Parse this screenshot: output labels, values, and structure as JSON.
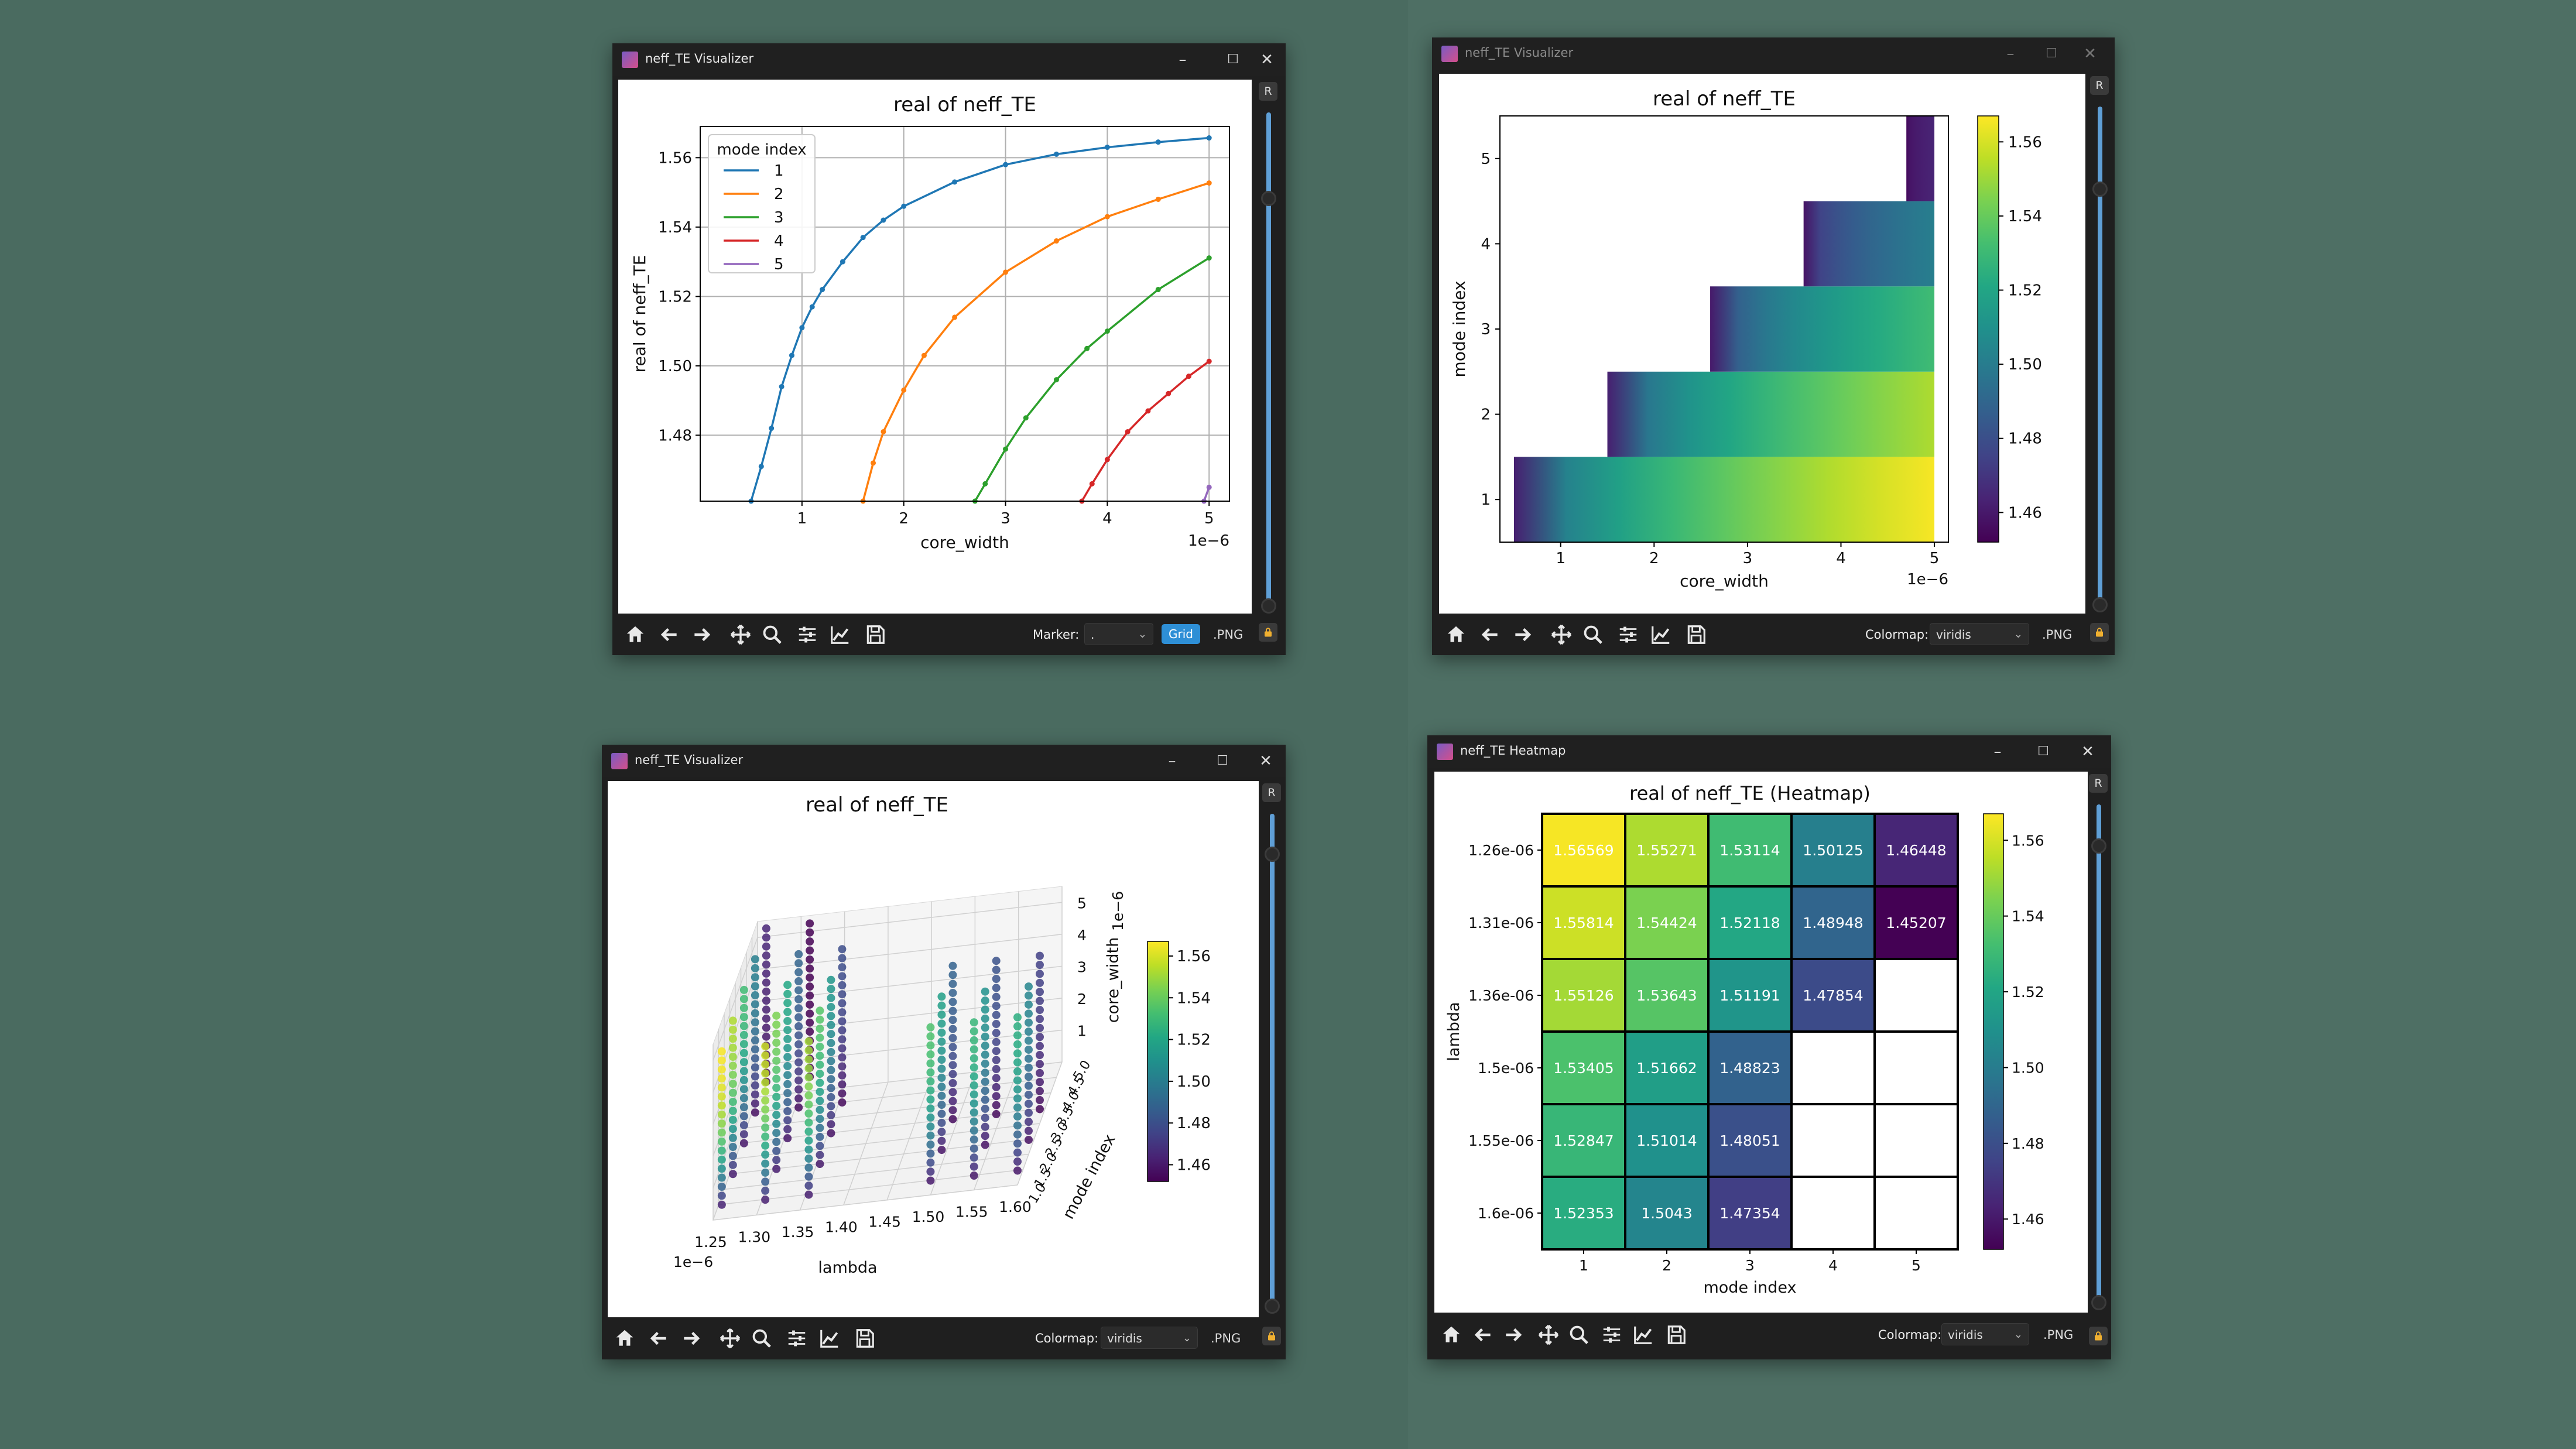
{
  "windows": [
    {
      "id": "line",
      "title": "neff_TE Visualizer",
      "toolbar": {
        "marker_label": "Marker:",
        "marker_value": ".",
        "grid_label": "Grid",
        "png_label": ".PNG"
      }
    },
    {
      "id": "heat2d",
      "title": "neff_TE Visualizer",
      "toolbar": {
        "colormap_label": "Colormap:",
        "colormap_value": "viridis",
        "png_label": ".PNG"
      }
    },
    {
      "id": "scatter3d",
      "title": "neff_TE Visualizer",
      "toolbar": {
        "colormap_label": "Colormap:",
        "colormap_value": "viridis",
        "png_label": ".PNG"
      }
    },
    {
      "id": "heatmap",
      "title": "neff_TE Heatmap",
      "toolbar": {
        "colormap_label": "Colormap:",
        "colormap_value": "viridis",
        "png_label": ".PNG"
      }
    }
  ],
  "side": {
    "reset_label": "R"
  },
  "colors": {
    "window_bg": "#1f1f1f",
    "accent": "#2e8fd6",
    "desktop": "#4a6b60"
  },
  "chart_data": [
    {
      "type": "line",
      "title": "real of neff_TE",
      "xlabel": "core_width",
      "ylabel": "real of neff_TE",
      "x_offset_label": "1e−6",
      "xlim": [
        0.0,
        5.2
      ],
      "ylim": [
        1.461,
        1.569
      ],
      "xticks": [
        1,
        2,
        3,
        4,
        5
      ],
      "yticks": [
        "1.48",
        "1.50",
        "1.52",
        "1.54",
        "1.56"
      ],
      "grid": true,
      "legend": {
        "title": "mode index",
        "position": "upper left",
        "labels": [
          "1",
          "2",
          "3",
          "4",
          "5"
        ]
      },
      "series": [
        {
          "name": "1",
          "color": "#1f77b4",
          "x": [
            0.5,
            0.6,
            0.7,
            0.8,
            0.9,
            1.0,
            1.1,
            1.2,
            1.4,
            1.6,
            1.8,
            2.0,
            2.5,
            3.0,
            3.5,
            4.0,
            4.5,
            5.0
          ],
          "y": [
            1.461,
            1.471,
            1.482,
            1.494,
            1.503,
            1.511,
            1.517,
            1.522,
            1.53,
            1.537,
            1.542,
            1.546,
            1.553,
            1.558,
            1.561,
            1.563,
            1.5645,
            1.5657
          ]
        },
        {
          "name": "2",
          "color": "#ff7f0e",
          "x": [
            1.6,
            1.7,
            1.8,
            2.0,
            2.2,
            2.5,
            3.0,
            3.5,
            4.0,
            4.5,
            5.0
          ],
          "y": [
            1.461,
            1.472,
            1.481,
            1.493,
            1.503,
            1.514,
            1.527,
            1.536,
            1.543,
            1.548,
            1.5527
          ]
        },
        {
          "name": "3",
          "color": "#2ca02c",
          "x": [
            2.7,
            2.8,
            3.0,
            3.2,
            3.5,
            3.8,
            4.0,
            4.5,
            5.0
          ],
          "y": [
            1.461,
            1.466,
            1.476,
            1.485,
            1.496,
            1.505,
            1.51,
            1.522,
            1.5311
          ]
        },
        {
          "name": "4",
          "color": "#d62728",
          "x": [
            3.75,
            3.85,
            4.0,
            4.2,
            4.4,
            4.6,
            4.8,
            5.0
          ],
          "y": [
            1.461,
            1.466,
            1.473,
            1.481,
            1.487,
            1.492,
            1.497,
            1.5013
          ]
        },
        {
          "name": "5",
          "color": "#9467bd",
          "x": [
            4.95,
            5.0
          ],
          "y": [
            1.461,
            1.465
          ]
        }
      ]
    },
    {
      "type": "heatmap",
      "title": "real of neff_TE",
      "xlabel": "core_width",
      "ylabel": "mode index",
      "x_offset_label": "1e−6",
      "colormap": "viridis",
      "colorbar_range": [
        1.452,
        1.567
      ],
      "colorbar_ticks": [
        "1.46",
        "1.48",
        "1.50",
        "1.52",
        "1.54",
        "1.56"
      ],
      "xticks": [
        "1",
        "2",
        "3",
        "4",
        "5"
      ],
      "yticks": [
        "1",
        "2",
        "3",
        "4",
        "5"
      ],
      "rows": [
        {
          "mode": 1,
          "x_start": 0.5,
          "x_end": 5.0,
          "v_start": 1.462,
          "v_end": 1.566
        },
        {
          "mode": 2,
          "x_start": 1.5,
          "x_end": 5.0,
          "v_start": 1.462,
          "v_end": 1.553
        },
        {
          "mode": 3,
          "x_start": 2.6,
          "x_end": 5.0,
          "v_start": 1.46,
          "v_end": 1.531
        },
        {
          "mode": 4,
          "x_start": 3.6,
          "x_end": 5.0,
          "v_start": 1.458,
          "v_end": 1.501
        },
        {
          "mode": 5,
          "x_start": 4.7,
          "x_end": 5.0,
          "v_start": 1.455,
          "v_end": 1.464
        }
      ]
    },
    {
      "type": "scatter",
      "projection": "3d",
      "title": "real of neff_TE",
      "xlabel": "lambda",
      "ylabel": "mode index",
      "zlabel": "core_width",
      "x_offset_label": "1e−6",
      "z_offset_label": "1e−6",
      "xticks": [
        "1.25",
        "1.30",
        "1.35",
        "1.40",
        "1.45",
        "1.50",
        "1.55",
        "1.60"
      ],
      "yticks": [
        "1.0",
        "1.5",
        "2.0",
        "2.5",
        "3.0",
        "3.5",
        "4.0",
        "4.5",
        "5.0"
      ],
      "zticks": [
        "1",
        "2",
        "3",
        "4",
        "5"
      ],
      "colormap": "viridis",
      "colorbar_ticks": [
        "1.46",
        "1.48",
        "1.50",
        "1.52",
        "1.54",
        "1.56"
      ],
      "columns": [
        {
          "lambda": 1.26e-06,
          "mode": 1,
          "top": 1.566
        },
        {
          "lambda": 1.26e-06,
          "mode": 2,
          "top": 1.553
        },
        {
          "lambda": 1.26e-06,
          "mode": 3,
          "top": 1.531
        },
        {
          "lambda": 1.26e-06,
          "mode": 4,
          "top": 1.501
        },
        {
          "lambda": 1.26e-06,
          "mode": 5,
          "top": 1.464
        },
        {
          "lambda": 1.31e-06,
          "mode": 1,
          "top": 1.558
        },
        {
          "lambda": 1.31e-06,
          "mode": 2,
          "top": 1.544
        },
        {
          "lambda": 1.31e-06,
          "mode": 3,
          "top": 1.521
        },
        {
          "lambda": 1.31e-06,
          "mode": 4,
          "top": 1.489
        },
        {
          "lambda": 1.31e-06,
          "mode": 5,
          "top": 1.452
        },
        {
          "lambda": 1.36e-06,
          "mode": 1,
          "top": 1.551
        },
        {
          "lambda": 1.36e-06,
          "mode": 2,
          "top": 1.536
        },
        {
          "lambda": 1.36e-06,
          "mode": 3,
          "top": 1.512
        },
        {
          "lambda": 1.36e-06,
          "mode": 4,
          "top": 1.479
        },
        {
          "lambda": 1.5e-06,
          "mode": 1,
          "top": 1.534
        },
        {
          "lambda": 1.5e-06,
          "mode": 2,
          "top": 1.517
        },
        {
          "lambda": 1.5e-06,
          "mode": 3,
          "top": 1.488
        },
        {
          "lambda": 1.55e-06,
          "mode": 1,
          "top": 1.528
        },
        {
          "lambda": 1.55e-06,
          "mode": 2,
          "top": 1.51
        },
        {
          "lambda": 1.55e-06,
          "mode": 3,
          "top": 1.481
        },
        {
          "lambda": 1.6e-06,
          "mode": 1,
          "top": 1.524
        },
        {
          "lambda": 1.6e-06,
          "mode": 2,
          "top": 1.504
        },
        {
          "lambda": 1.6e-06,
          "mode": 3,
          "top": 1.474
        }
      ]
    },
    {
      "type": "heatmap",
      "title": "real of neff_TE (Heatmap)",
      "xlabel": "mode index",
      "ylabel": "lambda",
      "colormap": "viridis",
      "colorbar_range": [
        1.452,
        1.567
      ],
      "colorbar_ticks": [
        "1.46",
        "1.48",
        "1.50",
        "1.52",
        "1.54",
        "1.56"
      ],
      "columns": [
        "1",
        "2",
        "3",
        "4",
        "5"
      ],
      "rows": [
        "1.26e-06",
        "1.31e-06",
        "1.36e-06",
        "1.5e-06",
        "1.55e-06",
        "1.6e-06"
      ],
      "values": [
        [
          "1.56569",
          "1.55271",
          "1.53114",
          "1.50125",
          "1.46448"
        ],
        [
          "1.55814",
          "1.54424",
          "1.52118",
          "1.48948",
          "1.45207"
        ],
        [
          "1.55126",
          "1.53643",
          "1.51191",
          "1.47854",
          ""
        ],
        [
          "1.53405",
          "1.51662",
          "1.48823",
          "",
          ""
        ],
        [
          "1.52847",
          "1.51014",
          "1.48051",
          "",
          ""
        ],
        [
          "1.52353",
          "1.5043",
          "1.47354",
          "",
          ""
        ]
      ]
    }
  ]
}
